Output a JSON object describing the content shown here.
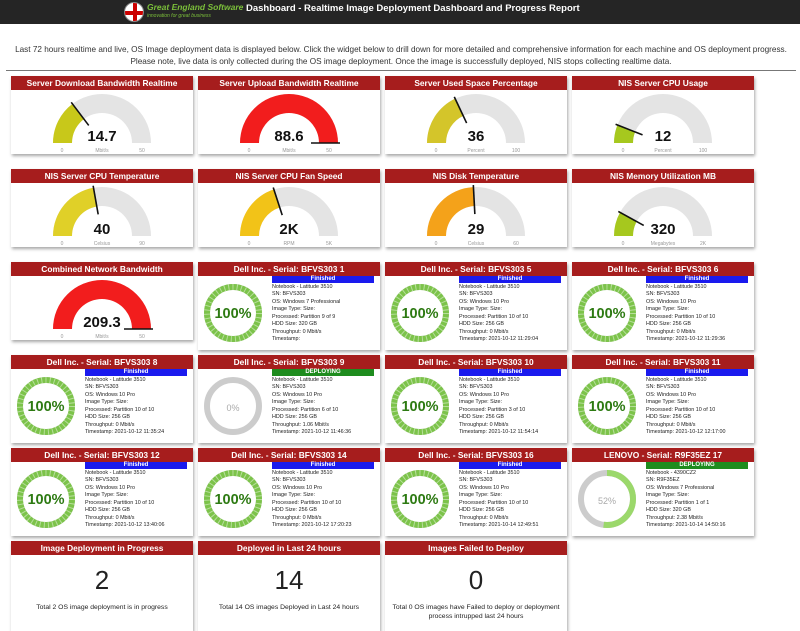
{
  "app": {
    "logo_name": "Great England Software",
    "logo_tagline": "innovation for great business",
    "title": "Dashboard - Realtime Image Deployment Dashboard and Progress Report",
    "intro": "Last 72 hours realtime and live, OS Image deployment data is displayed below. Click the widget below to drill down for more detailed and comprehensive information for each machine and OS deployment progress. Please note, live data is only collected during the OS image deployment. Once the image is successfully deployed, NIS stops collecting realtime data."
  },
  "colors": {
    "header": "#a61d1d",
    "finished": "#1a1aee",
    "deploying": "#1e8c1e",
    "ring_green": "#7cc34a",
    "ring_gray": "#cccccc"
  },
  "gauges": [
    {
      "title": "Server Download Bandwidth Realtime",
      "value": 14.7,
      "display": "14.7",
      "unit": "Mbit/s",
      "min": 0,
      "max": 50,
      "min_label": "0",
      "max_label": "50",
      "color": "#c8c81a"
    },
    {
      "title": "Server Upload Bandwidth Realtime",
      "value": 88.6,
      "display": "88.6",
      "unit": "Mbit/s",
      "min": 0,
      "max": 50,
      "min_label": "0",
      "max_label": "50",
      "color": "#f21d1d"
    },
    {
      "title": "Server Used Space Percentage",
      "value": 36,
      "display": "36",
      "unit": "Percent",
      "min": 0,
      "max": 100,
      "min_label": "0",
      "max_label": "100",
      "color": "#d4c52a"
    },
    {
      "title": "NIS Server CPU Usage",
      "value": 12,
      "display": "12",
      "unit": "Percent",
      "min": 0,
      "max": 100,
      "min_label": "0",
      "max_label": "100",
      "color": "#a6c81e"
    },
    {
      "title": "NIS Server CPU Temperature",
      "value": 40,
      "display": "40",
      "unit": "Celsius",
      "min": 0,
      "max": 90,
      "min_label": "0",
      "max_label": "90",
      "color": "#e0d028"
    },
    {
      "title": "NIS Server CPU Fan Speed",
      "value": 2000,
      "display": "2K",
      "unit": "RPM",
      "min": 0,
      "max": 5000,
      "min_label": "0",
      "max_label": "5K",
      "color": "#f2c318"
    },
    {
      "title": "NIS Disk Temperature",
      "value": 29,
      "display": "29",
      "unit": "Celsius",
      "min": 0,
      "max": 60,
      "min_label": "0",
      "max_label": "60",
      "color": "#f4a21a"
    },
    {
      "title": "NIS Memory Utilization MB",
      "value": 320,
      "display": "320",
      "unit": "Megabytes",
      "min": 0,
      "max": 2000,
      "min_label": "0",
      "max_label": "2K",
      "color": "#a6c81e"
    },
    {
      "title": "Combined Network Bandwidth",
      "value": 209.3,
      "display": "209.3",
      "unit": "Mbit/s",
      "min": 0,
      "max": 50,
      "min_label": "0",
      "max_label": "50",
      "color": "#f21d1d"
    }
  ],
  "machines": [
    {
      "title": "Dell Inc. - Serial: BFVS303 1",
      "percent": 100,
      "percent_label": "100%",
      "status": "Finished",
      "status_type": "fin",
      "lines": [
        "Notebook - Latitude 3510",
        "SN: BFVS303",
        "OS: Windows 7 Professional",
        "Image Type: Size:",
        "Processed: Partition 9 of 9",
        "HDD Size: 320 GB",
        "Throughput: 0 Mbit/s",
        "Timestamp:"
      ]
    },
    {
      "title": "Dell Inc. - Serial: BFVS303 5",
      "percent": 100,
      "percent_label": "100%",
      "status": "Finished",
      "status_type": "fin",
      "lines": [
        "Notebook - Latitude 3510",
        "SN: BFVS303",
        "OS: Windows 10 Pro",
        "Image Type: Size:",
        "Processed: Partition 10 of 10",
        "HDD Size: 256 GB",
        "Throughput: 0 Mbit/s",
        "Timestamp: 2021-10-12 11:29:04"
      ]
    },
    {
      "title": "Dell Inc. - Serial: BFVS303 6",
      "percent": 100,
      "percent_label": "100%",
      "status": "Finished",
      "status_type": "fin",
      "lines": [
        "Notebook - Latitude 3510",
        "SN: BFVS303",
        "OS: Windows 10 Pro",
        "Image Type: Size:",
        "Processed: Partition 10 of 10",
        "HDD Size: 256 GB",
        "Throughput: 0 Mbit/s",
        "Timestamp: 2021-10-12 11:29:36"
      ]
    },
    {
      "title": "Dell Inc. - Serial: BFVS303 8",
      "percent": 100,
      "percent_label": "100%",
      "status": "Finished",
      "status_type": "fin",
      "lines": [
        "Notebook - Latitude 3510",
        "SN: BFVS303",
        "OS: Windows 10 Pro",
        "Image Type: Size:",
        "Processed: Partition 10 of 10",
        "HDD Size: 256 GB",
        "Throughput: 0 Mbit/s",
        "Timestamp: 2021-10-12 11:35:24"
      ]
    },
    {
      "title": "Dell Inc. - Serial: BFVS303 9",
      "percent": 0,
      "percent_label": "0%",
      "status": "DEPLOYING",
      "status_type": "dep",
      "lines": [
        "Notebook - Latitude 3510",
        "SN: BFVS303",
        "OS: Windows 10 Pro",
        "Image Type: Size:",
        "Processed: Partition 6 of 10",
        "HDD Size: 256 GB",
        "Throughput: 1.06 Mbit/s",
        "Timestamp: 2021-10-12 11:46:36"
      ]
    },
    {
      "title": "Dell Inc. - Serial: BFVS303 10",
      "percent": 100,
      "percent_label": "100%",
      "status": "Finished",
      "status_type": "fin",
      "lines": [
        "Notebook - Latitude 3510",
        "SN: BFVS303",
        "OS: Windows 10 Pro",
        "Image Type: Size:",
        "Processed: Partition 3 of 10",
        "HDD Size: 256 GB",
        "Throughput: 0 Mbit/s",
        "Timestamp: 2021-10-12 11:54:14"
      ]
    },
    {
      "title": "Dell Inc. - Serial: BFVS303 11",
      "percent": 100,
      "percent_label": "100%",
      "status": "Finished",
      "status_type": "fin",
      "lines": [
        "Notebook - Latitude 3510",
        "SN: BFVS303",
        "OS: Windows 10 Pro",
        "Image Type: Size:",
        "Processed: Partition 10 of 10",
        "HDD Size: 256 GB",
        "Throughput: 0 Mbit/s",
        "Timestamp: 2021-10-12 12:17:00"
      ]
    },
    {
      "title": "Dell Inc. - Serial: BFVS303 12",
      "percent": 100,
      "percent_label": "100%",
      "status": "Finished",
      "status_type": "fin",
      "lines": [
        "Notebook - Latitude 3510",
        "SN: BFVS303",
        "OS: Windows 10 Pro",
        "Image Type: Size:",
        "Processed: Partition 10 of 10",
        "HDD Size: 256 GB",
        "Throughput: 0 Mbit/s",
        "Timestamp: 2021-10-12 13:40:06"
      ]
    },
    {
      "title": "Dell Inc. - Serial: BFVS303 14",
      "percent": 100,
      "percent_label": "100%",
      "status": "Finished",
      "status_type": "fin",
      "lines": [
        "Notebook - Latitude 3510",
        "SN: BFVS303",
        "OS: Windows 10 Pro",
        "Image Type: Size:",
        "Processed: Partition 10 of 10",
        "HDD Size: 256 GB",
        "Throughput: 0 Mbit/s",
        "Timestamp: 2021-10-12 17:20:23"
      ]
    },
    {
      "title": "Dell Inc. - Serial: BFVS303 16",
      "percent": 100,
      "percent_label": "100%",
      "status": "Finished",
      "status_type": "fin",
      "lines": [
        "Notebook - Latitude 3510",
        "SN: BFVS303",
        "OS: Windows 10 Pro",
        "Image Type: Size:",
        "Processed: Partition 10 of 10",
        "HDD Size: 256 GB",
        "Throughput: 0 Mbit/s",
        "Timestamp: 2021-10-14 12:49:51"
      ]
    },
    {
      "title": "LENOVO - Serial: R9F35EZ 17",
      "percent": 52,
      "percent_label": "52%",
      "status": "DEPLOYING",
      "status_type": "dep",
      "lines": [
        "Notebook - 4390CZ2",
        "SN: R9F35EZ",
        "OS: Windows 7 Professional",
        "Image Type: Size:",
        "Processed: Partition 1 of 1",
        "HDD Size: 320 GB",
        "Throughput: 2.38 Mbit/s",
        "Timestamp: 2021-10-14 14:50:16"
      ]
    }
  ],
  "stats": [
    {
      "title": "Image Deployment in Progress",
      "value": "2",
      "desc": "Total 2 OS image deployment is in progress"
    },
    {
      "title": "Deployed in Last 24 hours",
      "value": "14",
      "desc": "Total 14 OS images Deployed in Last 24 hours"
    },
    {
      "title": "Images Failed to Deploy",
      "value": "0",
      "desc": "Total 0 OS images have Failed to deploy or deployment process intrupped last 24 hours"
    }
  ]
}
